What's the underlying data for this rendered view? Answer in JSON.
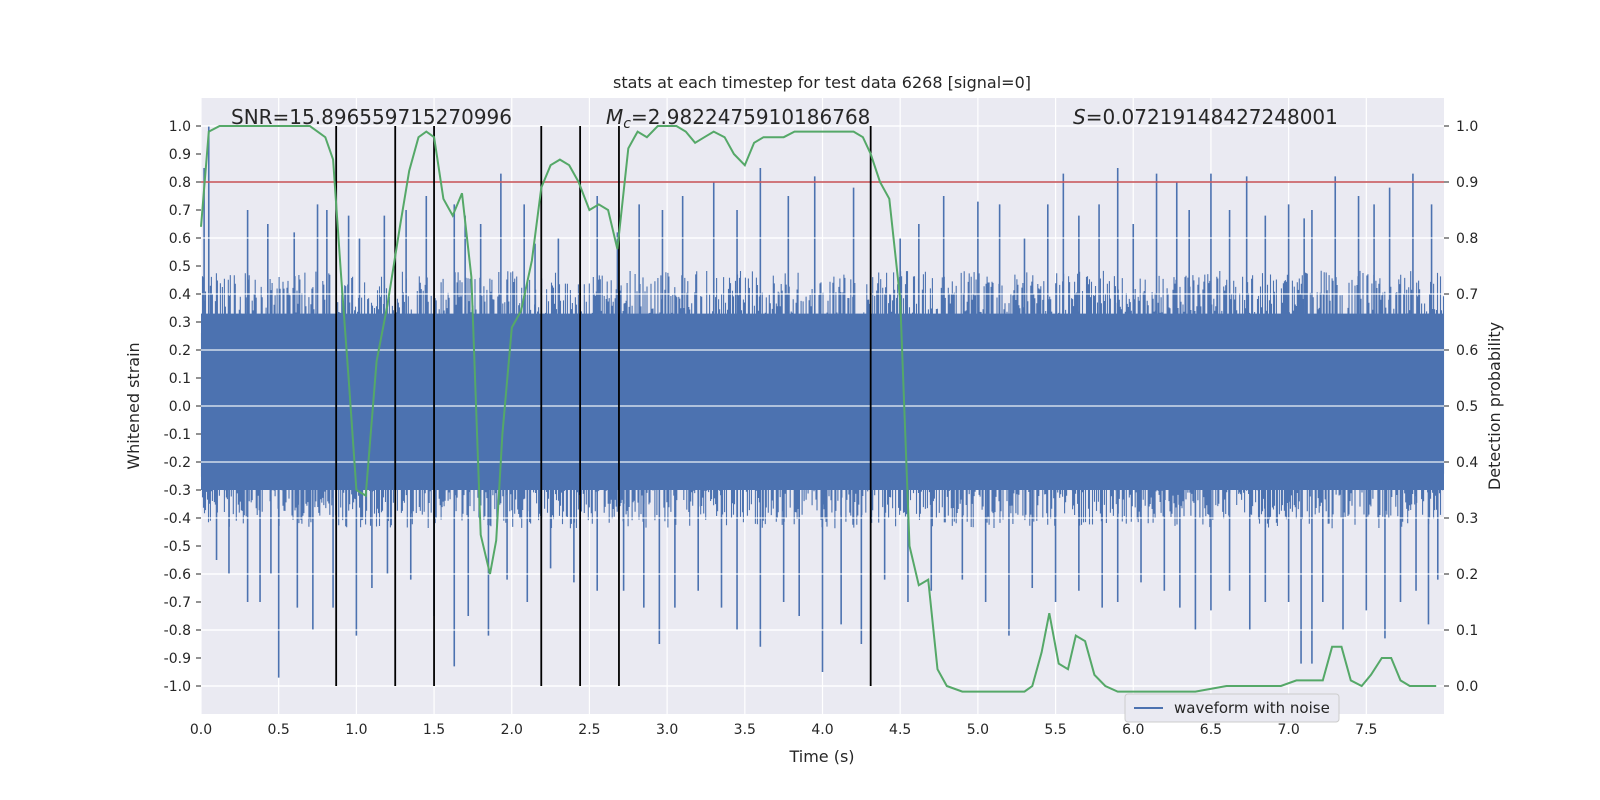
{
  "chart_data": {
    "type": "line",
    "title": "stats at each timestep for test data 6268 [signal=0]",
    "xlabel": "Time (s)",
    "ylabel": "Whitened strain",
    "y2label": "Detection probability",
    "xlim": [
      0.0,
      8.0
    ],
    "ylim": [
      -1.1,
      1.1
    ],
    "y2lim": [
      -0.05,
      1.05
    ],
    "xticks": [
      "0.0",
      "0.5",
      "1.0",
      "1.5",
      "2.0",
      "2.5",
      "3.0",
      "3.5",
      "4.0",
      "4.5",
      "5.0",
      "5.5",
      "6.0",
      "6.5",
      "7.0",
      "7.5"
    ],
    "yticks": [
      "1.0",
      "0.9",
      "0.8",
      "0.7",
      "0.6",
      "0.5",
      "0.4",
      "0.3",
      "0.2",
      "0.1",
      "0.0",
      "-0.1",
      "-0.2",
      "-0.3",
      "-0.4",
      "-0.5",
      "-0.6",
      "-0.7",
      "-0.8",
      "-0.9",
      "-1.0"
    ],
    "y2ticks": [
      "1.0",
      "0.9",
      "0.8",
      "0.7",
      "0.6",
      "0.5",
      "0.4",
      "0.3",
      "0.2",
      "0.1",
      "0.0"
    ],
    "annotations": {
      "snr": "SNR=15.896559715270996",
      "mc_symbol": "M",
      "mc_sub": "c",
      "mc_value": "=2.9822475910186768",
      "s_symbol": "S",
      "s_value": "=0.07219148427248001"
    },
    "legend": {
      "label": "waveform with noise",
      "placement": "lower-right"
    },
    "threshold": 0.8,
    "event_lines": [
      0.87,
      1.25,
      1.5,
      2.19,
      2.44,
      2.69,
      4.31
    ],
    "waveform": {
      "name": "waveform with noise",
      "color": "#4c72b0",
      "typical_max": 0.42,
      "typical_min": -0.38,
      "positive_spikes": [
        [
          0.02,
          0.85
        ],
        [
          0.05,
          1.0
        ],
        [
          0.3,
          0.7
        ],
        [
          0.43,
          0.65
        ],
        [
          0.6,
          0.62
        ],
        [
          0.75,
          0.72
        ],
        [
          0.81,
          0.7
        ],
        [
          0.95,
          0.68
        ],
        [
          1.02,
          0.6
        ],
        [
          1.18,
          0.68
        ],
        [
          1.32,
          0.7
        ],
        [
          1.45,
          0.75
        ],
        [
          1.63,
          0.72
        ],
        [
          1.7,
          0.68
        ],
        [
          1.8,
          0.65
        ],
        [
          1.93,
          0.83
        ],
        [
          2.08,
          0.72
        ],
        [
          2.15,
          0.58
        ],
        [
          2.3,
          0.6
        ],
        [
          2.55,
          0.75
        ],
        [
          2.68,
          0.62
        ],
        [
          2.82,
          0.72
        ],
        [
          2.97,
          0.7
        ],
        [
          3.1,
          0.75
        ],
        [
          3.3,
          0.8
        ],
        [
          3.45,
          0.7
        ],
        [
          3.6,
          0.85
        ],
        [
          3.78,
          0.75
        ],
        [
          3.95,
          0.82
        ],
        [
          4.2,
          0.78
        ],
        [
          4.5,
          0.6
        ],
        [
          4.62,
          0.65
        ],
        [
          4.78,
          0.75
        ],
        [
          5.0,
          0.73
        ],
        [
          5.14,
          0.72
        ],
        [
          5.3,
          0.6
        ],
        [
          5.45,
          0.72
        ],
        [
          5.55,
          0.83
        ],
        [
          5.65,
          0.68
        ],
        [
          5.78,
          0.72
        ],
        [
          5.9,
          0.85
        ],
        [
          6.0,
          0.65
        ],
        [
          6.15,
          0.83
        ],
        [
          6.28,
          0.8
        ],
        [
          6.36,
          0.7
        ],
        [
          6.5,
          0.83
        ],
        [
          6.62,
          0.7
        ],
        [
          6.73,
          0.82
        ],
        [
          6.85,
          0.68
        ],
        [
          7.0,
          0.72
        ],
        [
          7.1,
          0.67
        ],
        [
          7.15,
          0.7
        ],
        [
          7.3,
          0.82
        ],
        [
          7.45,
          0.75
        ],
        [
          7.55,
          0.72
        ],
        [
          7.65,
          0.78
        ],
        [
          7.8,
          0.83
        ],
        [
          7.92,
          0.72
        ]
      ],
      "negative_spikes": [
        [
          0.1,
          -0.55
        ],
        [
          0.18,
          -0.6
        ],
        [
          0.3,
          -0.7
        ],
        [
          0.38,
          -0.7
        ],
        [
          0.45,
          -0.6
        ],
        [
          0.5,
          -0.97
        ],
        [
          0.62,
          -0.72
        ],
        [
          0.72,
          -0.8
        ],
        [
          0.85,
          -0.72
        ],
        [
          1.0,
          -0.82
        ],
        [
          1.1,
          -0.65
        ],
        [
          1.2,
          -0.6
        ],
        [
          1.35,
          -0.62
        ],
        [
          1.5,
          -0.75
        ],
        [
          1.63,
          -0.93
        ],
        [
          1.72,
          -0.75
        ],
        [
          1.85,
          -0.82
        ],
        [
          1.97,
          -0.62
        ],
        [
          2.1,
          -0.7
        ],
        [
          2.25,
          -0.58
        ],
        [
          2.4,
          -0.63
        ],
        [
          2.55,
          -0.66
        ],
        [
          2.72,
          -0.66
        ],
        [
          2.85,
          -0.72
        ],
        [
          2.95,
          -0.85
        ],
        [
          3.05,
          -0.72
        ],
        [
          3.2,
          -0.66
        ],
        [
          3.35,
          -0.72
        ],
        [
          3.45,
          -0.8
        ],
        [
          3.6,
          -0.86
        ],
        [
          3.75,
          -0.7
        ],
        [
          3.85,
          -0.75
        ],
        [
          4.0,
          -0.95
        ],
        [
          4.12,
          -0.78
        ],
        [
          4.25,
          -0.85
        ],
        [
          4.4,
          -0.62
        ],
        [
          4.55,
          -0.7
        ],
        [
          4.7,
          -0.66
        ],
        [
          4.9,
          -0.62
        ],
        [
          5.05,
          -0.7
        ],
        [
          5.2,
          -0.82
        ],
        [
          5.35,
          -0.65
        ],
        [
          5.5,
          -0.7
        ],
        [
          5.65,
          -0.66
        ],
        [
          5.8,
          -0.72
        ],
        [
          5.9,
          -0.7
        ],
        [
          6.05,
          -0.63
        ],
        [
          6.2,
          -0.66
        ],
        [
          6.3,
          -0.72
        ],
        [
          6.4,
          -0.8
        ],
        [
          6.5,
          -0.73
        ],
        [
          6.62,
          -0.66
        ],
        [
          6.75,
          -0.8
        ],
        [
          6.85,
          -0.7
        ],
        [
          7.0,
          -0.7
        ],
        [
          7.08,
          -0.92
        ],
        [
          7.15,
          -0.92
        ],
        [
          7.22,
          -0.7
        ],
        [
          7.35,
          -0.8
        ],
        [
          7.5,
          -0.73
        ],
        [
          7.62,
          -0.83
        ],
        [
          7.72,
          -0.7
        ],
        [
          7.82,
          -0.66
        ],
        [
          7.9,
          -0.78
        ],
        [
          7.96,
          -0.62
        ]
      ]
    },
    "series": [
      {
        "name": "Detection probability",
        "color": "#55a868",
        "axis": "y2",
        "points": [
          [
            0.0,
            0.82
          ],
          [
            0.05,
            0.99
          ],
          [
            0.12,
            1.0
          ],
          [
            0.2,
            1.0
          ],
          [
            0.3,
            1.0
          ],
          [
            0.4,
            1.0
          ],
          [
            0.5,
            1.0
          ],
          [
            0.6,
            1.0
          ],
          [
            0.7,
            1.0
          ],
          [
            0.75,
            0.99
          ],
          [
            0.8,
            0.98
          ],
          [
            0.85,
            0.94
          ],
          [
            0.9,
            0.74
          ],
          [
            0.95,
            0.55
          ],
          [
            1.0,
            0.35
          ],
          [
            1.06,
            0.34
          ],
          [
            1.13,
            0.58
          ],
          [
            1.2,
            0.68
          ],
          [
            1.28,
            0.82
          ],
          [
            1.34,
            0.92
          ],
          [
            1.4,
            0.98
          ],
          [
            1.45,
            0.99
          ],
          [
            1.5,
            0.98
          ],
          [
            1.56,
            0.87
          ],
          [
            1.62,
            0.84
          ],
          [
            1.68,
            0.88
          ],
          [
            1.74,
            0.73
          ],
          [
            1.8,
            0.27
          ],
          [
            1.86,
            0.2
          ],
          [
            1.9,
            0.26
          ],
          [
            1.94,
            0.45
          ],
          [
            2.0,
            0.64
          ],
          [
            2.06,
            0.67
          ],
          [
            2.13,
            0.76
          ],
          [
            2.19,
            0.89
          ],
          [
            2.25,
            0.93
          ],
          [
            2.31,
            0.94
          ],
          [
            2.37,
            0.93
          ],
          [
            2.43,
            0.9
          ],
          [
            2.5,
            0.85
          ],
          [
            2.56,
            0.86
          ],
          [
            2.62,
            0.85
          ],
          [
            2.68,
            0.78
          ],
          [
            2.75,
            0.96
          ],
          [
            2.81,
            0.99
          ],
          [
            2.87,
            0.98
          ],
          [
            2.94,
            1.0
          ],
          [
            3.0,
            1.0
          ],
          [
            3.06,
            1.0
          ],
          [
            3.12,
            0.99
          ],
          [
            3.18,
            0.97
          ],
          [
            3.24,
            0.98
          ],
          [
            3.3,
            0.99
          ],
          [
            3.37,
            0.98
          ],
          [
            3.43,
            0.95
          ],
          [
            3.5,
            0.93
          ],
          [
            3.56,
            0.97
          ],
          [
            3.62,
            0.98
          ],
          [
            3.68,
            0.98
          ],
          [
            3.75,
            0.98
          ],
          [
            3.82,
            0.99
          ],
          [
            3.9,
            0.99
          ],
          [
            4.0,
            0.99
          ],
          [
            4.1,
            0.99
          ],
          [
            4.2,
            0.99
          ],
          [
            4.26,
            0.98
          ],
          [
            4.31,
            0.95
          ],
          [
            4.37,
            0.9
          ],
          [
            4.43,
            0.87
          ],
          [
            4.5,
            0.69
          ],
          [
            4.56,
            0.25
          ],
          [
            4.62,
            0.18
          ],
          [
            4.68,
            0.19
          ],
          [
            4.74,
            0.03
          ],
          [
            4.8,
            0.0
          ],
          [
            4.9,
            -0.01
          ],
          [
            5.0,
            -0.01
          ],
          [
            5.1,
            -0.01
          ],
          [
            5.2,
            -0.01
          ],
          [
            5.3,
            -0.01
          ],
          [
            5.35,
            0.0
          ],
          [
            5.41,
            0.06
          ],
          [
            5.46,
            0.13
          ],
          [
            5.52,
            0.04
          ],
          [
            5.58,
            0.03
          ],
          [
            5.63,
            0.09
          ],
          [
            5.69,
            0.08
          ],
          [
            5.75,
            0.02
          ],
          [
            5.82,
            0.0
          ],
          [
            5.9,
            -0.01
          ],
          [
            6.0,
            -0.01
          ],
          [
            6.2,
            -0.01
          ],
          [
            6.4,
            -0.01
          ],
          [
            6.6,
            0.0
          ],
          [
            6.8,
            0.0
          ],
          [
            6.95,
            0.0
          ],
          [
            7.05,
            0.01
          ],
          [
            7.15,
            0.01
          ],
          [
            7.22,
            0.01
          ],
          [
            7.28,
            0.07
          ],
          [
            7.34,
            0.07
          ],
          [
            7.4,
            0.01
          ],
          [
            7.47,
            0.0
          ],
          [
            7.53,
            0.02
          ],
          [
            7.6,
            0.05
          ],
          [
            7.66,
            0.05
          ],
          [
            7.72,
            0.01
          ],
          [
            7.78,
            0.0
          ],
          [
            7.95,
            0.0
          ]
        ]
      }
    ]
  }
}
